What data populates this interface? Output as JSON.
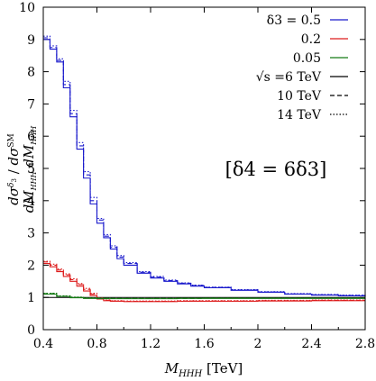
{
  "chart_data": {
    "type": "line",
    "xlabel": "M_HHH [TeV]",
    "ylabel": "(dσ^δ3 / dM_HHH) / (dσ^SM / dM_HHH)",
    "xlim": [
      0.4,
      2.8
    ],
    "ylim": [
      0,
      10
    ],
    "xticks": [
      0.4,
      0.8,
      1.2,
      1.6,
      2.0,
      2.4,
      2.8
    ],
    "xtick_labels": [
      "0.4",
      "0.8",
      "1.2",
      "1.6",
      "2",
      "2.4",
      "2.8"
    ],
    "yticks": [
      0,
      1,
      2,
      3,
      4,
      5,
      6,
      7,
      8,
      9,
      10
    ],
    "ytick_labels": [
      "0",
      "1",
      "2",
      "3",
      "4",
      "5",
      "6",
      "7",
      "8",
      "9",
      "10"
    ],
    "annotation": "[δ4 = 6δ3]",
    "legend_position": "top-right",
    "legend": [
      {
        "label": "δ3 = 0.5",
        "color": "#1a1acc",
        "style": "solid"
      },
      {
        "label": "0.2",
        "color": "#dd1c1c",
        "style": "solid"
      },
      {
        "label": "0.05",
        "color": "#147a14",
        "style": "solid"
      },
      {
        "label": "√s =6 TeV",
        "color": "#000000",
        "style": "solid"
      },
      {
        "label": "10 TeV",
        "color": "#000000",
        "style": "dashed"
      },
      {
        "label": "14 TeV",
        "color": "#000000",
        "style": "dotted"
      }
    ],
    "reference_line": 1,
    "series": [
      {
        "delta3": 0.5,
        "sqrt_s_TeV": 6,
        "color": "#1a1acc",
        "style": "solid",
        "x": [
          0.4,
          0.45,
          0.5,
          0.55,
          0.6,
          0.65,
          0.7,
          0.75,
          0.8,
          0.85,
          0.9,
          0.95,
          1.0,
          1.1,
          1.2,
          1.3,
          1.4,
          1.5,
          1.6,
          1.8,
          2.0,
          2.2,
          2.4,
          2.6,
          2.8
        ],
        "y": [
          9.0,
          8.7,
          8.3,
          7.5,
          6.6,
          5.6,
          4.7,
          3.9,
          3.3,
          2.85,
          2.5,
          2.2,
          2.0,
          1.75,
          1.6,
          1.5,
          1.42,
          1.35,
          1.3,
          1.22,
          1.16,
          1.1,
          1.07,
          1.05,
          1.03
        ]
      },
      {
        "delta3": 0.5,
        "sqrt_s_TeV": 10,
        "color": "#1a1acc",
        "style": "dashed",
        "x": [
          0.4,
          0.45,
          0.5,
          0.55,
          0.6,
          0.65,
          0.7,
          0.75,
          0.8,
          0.85,
          0.9,
          0.95,
          1.0,
          1.1,
          1.2,
          1.3,
          1.4,
          1.5,
          1.6,
          1.8,
          2.0,
          2.2,
          2.4,
          2.6,
          2.8
        ],
        "y": [
          9.05,
          8.75,
          8.35,
          7.6,
          6.7,
          5.7,
          4.8,
          4.0,
          3.4,
          2.9,
          2.55,
          2.25,
          2.05,
          1.78,
          1.63,
          1.52,
          1.44,
          1.37,
          1.31,
          1.23,
          1.17,
          1.11,
          1.08,
          1.06,
          1.04
        ]
      },
      {
        "delta3": 0.5,
        "sqrt_s_TeV": 14,
        "color": "#1a1acc",
        "style": "dotted",
        "x": [
          0.4,
          0.45,
          0.5,
          0.55,
          0.6,
          0.65,
          0.7,
          0.75,
          0.8,
          0.85,
          0.9,
          0.95,
          1.0,
          1.1,
          1.2,
          1.3,
          1.4,
          1.5,
          1.6,
          1.8,
          2.0,
          2.2,
          2.4,
          2.6,
          2.8
        ],
        "y": [
          9.1,
          8.8,
          8.4,
          7.7,
          6.8,
          5.8,
          4.9,
          4.1,
          3.45,
          2.95,
          2.6,
          2.3,
          2.08,
          1.8,
          1.65,
          1.54,
          1.45,
          1.38,
          1.32,
          1.24,
          1.18,
          1.12,
          1.09,
          1.07,
          1.05
        ]
      },
      {
        "delta3": 0.2,
        "sqrt_s_TeV": 6,
        "color": "#dd1c1c",
        "style": "solid",
        "x": [
          0.4,
          0.45,
          0.5,
          0.55,
          0.6,
          0.65,
          0.7,
          0.75,
          0.8,
          0.85,
          0.9,
          1.0,
          1.2,
          1.4,
          1.6,
          2.0,
          2.4,
          2.8
        ],
        "y": [
          2.05,
          1.95,
          1.8,
          1.65,
          1.5,
          1.35,
          1.2,
          1.06,
          0.95,
          0.9,
          0.88,
          0.87,
          0.87,
          0.88,
          0.88,
          0.89,
          0.9,
          0.9
        ]
      },
      {
        "delta3": 0.2,
        "sqrt_s_TeV": 10,
        "color": "#dd1c1c",
        "style": "dashed",
        "x": [
          0.4,
          0.45,
          0.5,
          0.55,
          0.6,
          0.65,
          0.7,
          0.75,
          0.8,
          0.85,
          0.9,
          1.0,
          1.2,
          1.4,
          1.6,
          2.0,
          2.4,
          2.8
        ],
        "y": [
          2.1,
          2.0,
          1.85,
          1.7,
          1.55,
          1.4,
          1.25,
          1.1,
          0.97,
          0.91,
          0.89,
          0.88,
          0.88,
          0.89,
          0.89,
          0.9,
          0.91,
          0.91
        ]
      },
      {
        "delta3": 0.2,
        "sqrt_s_TeV": 14,
        "color": "#dd1c1c",
        "style": "dotted",
        "x": [
          0.4,
          0.45,
          0.5,
          0.55,
          0.6,
          0.65,
          0.7,
          0.75,
          0.8,
          0.85,
          0.9,
          1.0,
          1.2,
          1.4,
          1.6,
          2.0,
          2.4,
          2.8
        ],
        "y": [
          2.12,
          2.03,
          1.88,
          1.73,
          1.58,
          1.43,
          1.28,
          1.13,
          0.99,
          0.92,
          0.9,
          0.89,
          0.89,
          0.9,
          0.9,
          0.91,
          0.92,
          0.92
        ]
      },
      {
        "delta3": 0.05,
        "sqrt_s_TeV": 6,
        "color": "#147a14",
        "style": "solid",
        "x": [
          0.4,
          0.5,
          0.6,
          0.7,
          0.8,
          0.9,
          1.0,
          1.2,
          1.4,
          1.6,
          2.0,
          2.4,
          2.8
        ],
        "y": [
          1.1,
          1.03,
          0.99,
          0.97,
          0.96,
          0.96,
          0.96,
          0.96,
          0.97,
          0.97,
          0.97,
          0.97,
          0.98
        ]
      },
      {
        "delta3": 0.05,
        "sqrt_s_TeV": 10,
        "color": "#147a14",
        "style": "dashed",
        "x": [
          0.4,
          0.5,
          0.6,
          0.7,
          0.8,
          0.9,
          1.0,
          1.2,
          1.4,
          1.6,
          2.0,
          2.4,
          2.8
        ],
        "y": [
          1.12,
          1.04,
          1.0,
          0.98,
          0.97,
          0.97,
          0.97,
          0.97,
          0.97,
          0.98,
          0.98,
          0.98,
          0.98
        ]
      },
      {
        "delta3": 0.05,
        "sqrt_s_TeV": 14,
        "color": "#147a14",
        "style": "dotted",
        "x": [
          0.4,
          0.5,
          0.6,
          0.7,
          0.8,
          0.9,
          1.0,
          1.2,
          1.4,
          1.6,
          2.0,
          2.4,
          2.8
        ],
        "y": [
          1.13,
          1.05,
          1.01,
          0.99,
          0.98,
          0.97,
          0.97,
          0.97,
          0.98,
          0.98,
          0.98,
          0.98,
          0.99
        ]
      }
    ]
  }
}
